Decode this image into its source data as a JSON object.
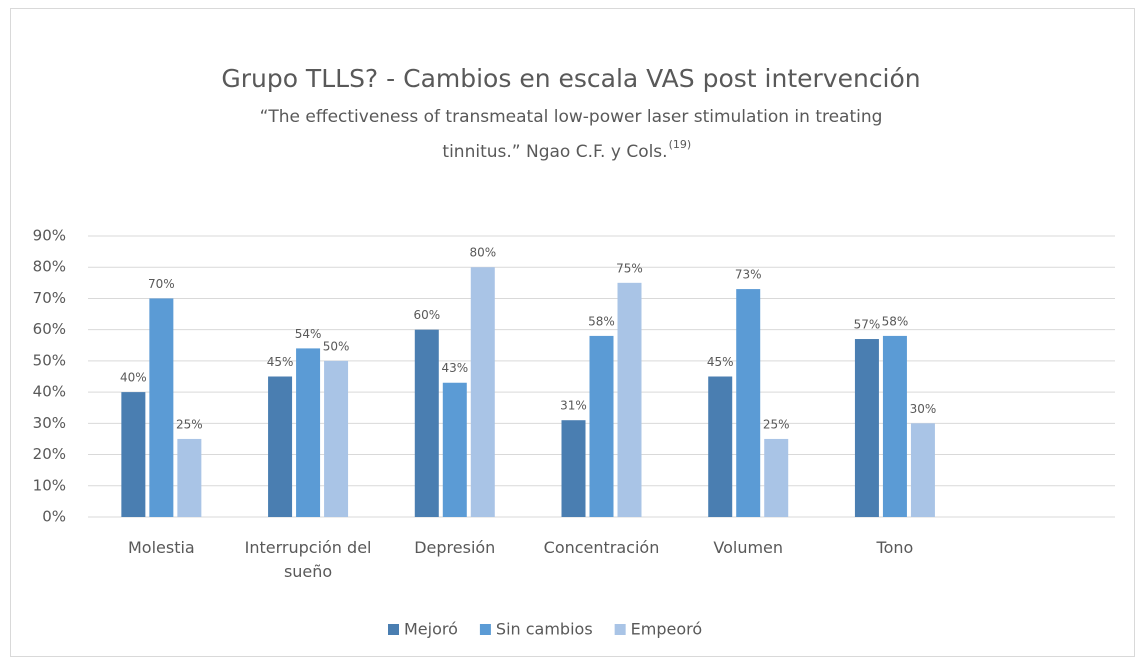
{
  "chart_data": {
    "type": "bar",
    "title": "Grupo TLLS? - Cambios en escala VAS post intervención",
    "subtitle": [
      "“The effectiveness of transmeatal low-power laser stimulation in treating",
      "tinnitus.” Ngao C.F. y Cols."
    ],
    "subtitle_superscript": "(19)",
    "categories": [
      "Molestia",
      "Interrupción del sueño",
      "Depresión",
      "Concentración",
      "Volumen",
      "Tono",
      null
    ],
    "series": [
      {
        "name": "Mejoró",
        "color": "#4a7eb1",
        "values": [
          40,
          45,
          60,
          31,
          45,
          57,
          null
        ],
        "value_labels": [
          "40%",
          "45%",
          "60%",
          "31%",
          "45%",
          "57%",
          null
        ]
      },
      {
        "name": "Sin cambios",
        "color": "#5b9bd5",
        "values": [
          70,
          54,
          43,
          58,
          73,
          58,
          null
        ],
        "value_labels": [
          "70%",
          "54%",
          "43%",
          "58%",
          "73%",
          "58%",
          null
        ]
      },
      {
        "name": "Empeoró",
        "color": "#a9c4e6",
        "values": [
          25,
          50,
          80,
          75,
          25,
          30,
          null
        ],
        "value_labels": [
          "25%",
          "50%",
          "80%",
          "75%",
          "25%",
          "30%",
          null
        ]
      }
    ],
    "ylim": [
      0,
      90
    ],
    "yticks": [
      {
        "value": 0,
        "label": "0%"
      },
      {
        "value": 10,
        "label": "10%"
      },
      {
        "value": 20,
        "label": "20%"
      },
      {
        "value": 30,
        "label": "30%"
      },
      {
        "value": 40,
        "label": "40%"
      },
      {
        "value": 50,
        "label": "50%"
      },
      {
        "value": 60,
        "label": "60%"
      },
      {
        "value": 70,
        "label": "70%"
      },
      {
        "value": 80,
        "label": "80%"
      },
      {
        "value": 90,
        "label": "90%"
      }
    ],
    "grid": true,
    "legend": "bottom"
  }
}
